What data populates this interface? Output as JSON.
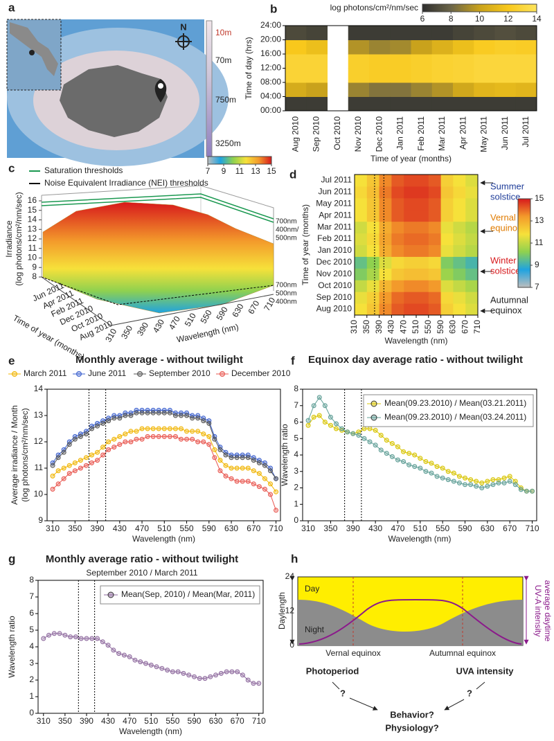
{
  "panel_labels": [
    "a",
    "b",
    "c",
    "d",
    "e",
    "f",
    "g",
    "h"
  ],
  "map": {
    "north": "N",
    "depth_labels": [
      {
        "text": "10m",
        "color": "#c0392b"
      },
      {
        "text": "70m",
        "color": "#222222"
      },
      {
        "text": "750m",
        "color": "#222222"
      },
      {
        "text": "3250m",
        "color": "#222222"
      }
    ]
  },
  "chart_data": [
    {
      "type": "heatmap",
      "ylabel": "Time of day (hrs)",
      "xlabel": "Time of year (months)",
      "categories": [
        "Aug 2010",
        "Sep 2010",
        "Oct 2010",
        "Nov 2010",
        "Dec 2010",
        "Jan 2011",
        "Feb 2011",
        "Mar 2011",
        "Apr 2011",
        "May 2011",
        "Jun 2011",
        "Jul 2011"
      ],
      "ylim": [
        0,
        24
      ],
      "yticks": [
        {
          "value": 0,
          "label": "00:00"
        },
        {
          "value": 4,
          "label": "04:00"
        },
        {
          "value": 8,
          "label": "08:00"
        },
        {
          "value": 12,
          "label": "12:00"
        },
        {
          "value": 16,
          "label": "16:00"
        },
        {
          "value": 20,
          "label": "20:00"
        },
        {
          "value": 24,
          "label": "24:00"
        }
      ],
      "values": [
        [
          6.5,
          10.5,
          12.8,
          12.8,
          12.0,
          7.0
        ],
        [
          6.5,
          10.0,
          12.8,
          12.8,
          11.5,
          6.8
        ],
        [
          null,
          null,
          null,
          null,
          null,
          null
        ],
        [
          6.5,
          9.0,
          12.5,
          12.5,
          9.5,
          6.5
        ],
        [
          6.5,
          8.5,
          12.3,
          12.3,
          9.0,
          6.5
        ],
        [
          6.5,
          8.5,
          12.3,
          12.3,
          9.2,
          6.5
        ],
        [
          6.5,
          9.0,
          12.5,
          12.5,
          10.0,
          6.5
        ],
        [
          6.5,
          9.5,
          12.7,
          12.7,
          10.8,
          6.5
        ],
        [
          6.5,
          10.3,
          12.8,
          12.8,
          11.5,
          6.8
        ],
        [
          6.5,
          11.0,
          13.0,
          13.0,
          12.2,
          7.0
        ],
        [
          6.5,
          11.2,
          13.0,
          13.0,
          12.4,
          7.2
        ],
        [
          6.5,
          11.0,
          13.0,
          13.0,
          12.3,
          7.0
        ]
      ],
      "colorbar": {
        "title": "log photons/cm²/nm/sec",
        "lim": [
          6,
          14
        ],
        "ticks": [
          6,
          8,
          10,
          12,
          14
        ],
        "colorscale": [
          "#2e2e2e",
          "#6b6548",
          "#c9a21c",
          "#f8c81c",
          "#fde45c"
        ]
      }
    },
    {
      "type": "surface",
      "legend": [
        {
          "name": "Saturation thresholds",
          "color": "#1a9850"
        },
        {
          "name": "Noise Equivalent Irradiance (NEI) thresholds",
          "color": "#000000"
        }
      ],
      "zlabel": [
        "Irradiance",
        "(log photons/cm²/nm/sec)"
      ],
      "zlim": [
        8,
        16
      ],
      "zticks": [
        8,
        9,
        10,
        11,
        12,
        13,
        14,
        15,
        16
      ],
      "time_labels": [
        "Jun 2011",
        "Apr 2011",
        "Feb 2011",
        "Dec 2010",
        "Oct 2010",
        "Aug 2010"
      ],
      "ylabel": "Time of year (months)",
      "xticks": [
        310,
        350,
        390,
        430,
        470,
        510,
        550,
        590,
        630,
        670,
        710
      ],
      "xlabel": "Wavelength (nm)",
      "annotations_top": [
        "700nm",
        "400nm/",
        "500nm"
      ],
      "annotations_bottom": [
        "700nm",
        "500nm",
        "400nm"
      ],
      "colorbar": {
        "lim": [
          7,
          15
        ],
        "ticks": [
          7,
          9,
          11,
          13,
          15
        ],
        "colorscale": [
          "#bdbdbd",
          "#1fa3e0",
          "#8fd14f",
          "#f6e13a",
          "#f39a2b",
          "#d7191c"
        ]
      }
    },
    {
      "type": "heatmap",
      "ylabel": "Time of year (months)",
      "xlabel": "Wavelength (nm)",
      "categories": [
        "Aug 2010",
        "Sep 2010",
        "Oct 2010",
        "Nov 2010",
        "Dec 2010",
        "Jan 2010",
        "Feb 2011",
        "Mar 2011",
        "Apr 2011",
        "May 2011",
        "Jun 2011",
        "Jul 2011"
      ],
      "xlim": [
        310,
        710
      ],
      "xticks": [
        310,
        350,
        390,
        430,
        470,
        510,
        550,
        590,
        630,
        670,
        710
      ],
      "values": [
        [
          11.8,
          12.4,
          13.6,
          14.2,
          14.4,
          14.4,
          14.2,
          12.2,
          11.8,
          11.4
        ],
        [
          11.6,
          12.2,
          13.4,
          14.0,
          14.2,
          14.2,
          14.0,
          12.0,
          11.6,
          11.2
        ],
        [
          11.0,
          11.6,
          12.8,
          13.4,
          13.6,
          13.6,
          13.4,
          11.4,
          11.0,
          10.6
        ],
        [
          10.0,
          10.6,
          11.8,
          12.4,
          12.6,
          12.6,
          12.4,
          10.4,
          10.0,
          9.6
        ],
        [
          9.6,
          10.2,
          11.4,
          12.0,
          12.2,
          12.2,
          12.0,
          10.0,
          9.6,
          9.2
        ],
        [
          11.2,
          11.8,
          13.0,
          13.6,
          13.8,
          13.8,
          13.6,
          11.6,
          11.2,
          10.8
        ],
        [
          11.4,
          12.0,
          13.2,
          13.8,
          14.0,
          14.0,
          13.8,
          11.8,
          11.4,
          11.0
        ],
        [
          11.2,
          11.8,
          13.0,
          13.6,
          13.8,
          13.8,
          13.6,
          11.6,
          11.2,
          10.8
        ],
        [
          11.8,
          12.4,
          13.6,
          14.2,
          14.4,
          14.4,
          14.2,
          12.2,
          11.8,
          11.4
        ],
        [
          11.8,
          12.4,
          13.6,
          14.2,
          14.4,
          14.4,
          14.2,
          12.2,
          11.8,
          11.4
        ],
        [
          12.0,
          12.6,
          13.8,
          14.4,
          14.6,
          14.6,
          14.4,
          12.4,
          12.0,
          11.6
        ],
        [
          11.8,
          12.4,
          13.6,
          14.2,
          14.4,
          14.4,
          14.2,
          12.2,
          11.8,
          11.4
        ]
      ],
      "reference_lines": [
        375,
        405
      ],
      "annotations": [
        {
          "lines": [
            "Summer",
            "solstice"
          ],
          "color": "#1f3d99"
        },
        {
          "lines": [
            "Vernal",
            "equinox"
          ],
          "color": "#e07b00"
        },
        {
          "lines": [
            "Winter",
            "solstice"
          ],
          "color": "#d7191c"
        },
        {
          "lines": [
            "Autumnal",
            "equinox"
          ],
          "color": "#222222"
        }
      ],
      "colorbar": {
        "lim": [
          7,
          15
        ],
        "ticks": [
          7,
          9,
          11,
          13,
          15
        ],
        "colorscale": [
          "#bdbdbd",
          "#1fa3e0",
          "#8fd14f",
          "#f6e13a",
          "#f39a2b",
          "#d7191c"
        ]
      }
    },
    {
      "type": "line",
      "title": "Monthly average - without twilight",
      "ylabel": [
        "Average irradiance / Month",
        "(log photons/cm²/nm/sec)"
      ],
      "xlabel": "Wavelength (nm)",
      "legend": "top",
      "xlim": [
        300,
        718
      ],
      "xticks": [
        310,
        350,
        390,
        430,
        470,
        510,
        550,
        590,
        630,
        670,
        710
      ],
      "ylim": [
        9,
        14
      ],
      "yticks": [
        9,
        10,
        11,
        12,
        13,
        14
      ],
      "reference_lines": [
        375,
        405
      ],
      "x": [
        310,
        320,
        330,
        340,
        350,
        360,
        370,
        380,
        390,
        400,
        410,
        420,
        430,
        440,
        450,
        460,
        470,
        480,
        490,
        500,
        510,
        520,
        530,
        540,
        550,
        560,
        570,
        580,
        590,
        600,
        610,
        620,
        630,
        640,
        650,
        660,
        670,
        680,
        690,
        700,
        710
      ],
      "series": [
        {
          "name": "March 2011",
          "color": "#f0b400",
          "values": [
            10.7,
            10.9,
            11.0,
            11.1,
            11.2,
            11.3,
            11.4,
            11.5,
            11.6,
            11.8,
            12.0,
            12.1,
            12.2,
            12.3,
            12.4,
            12.4,
            12.5,
            12.5,
            12.5,
            12.5,
            12.5,
            12.5,
            12.5,
            12.5,
            12.4,
            12.4,
            12.4,
            12.3,
            12.2,
            11.7,
            11.3,
            11.1,
            11.0,
            11.0,
            11.0,
            11.0,
            10.9,
            10.8,
            10.6,
            10.4,
            10.1
          ]
        },
        {
          "name": "June 2011",
          "color": "#3a5fcd",
          "values": [
            11.2,
            11.5,
            11.7,
            12.0,
            12.2,
            12.3,
            12.4,
            12.6,
            12.7,
            12.8,
            12.9,
            13.0,
            13.0,
            13.1,
            13.1,
            13.2,
            13.2,
            13.2,
            13.2,
            13.2,
            13.2,
            13.2,
            13.1,
            13.1,
            13.1,
            13.0,
            13.0,
            12.9,
            12.8,
            12.2,
            11.8,
            11.6,
            11.5,
            11.5,
            11.5,
            11.5,
            11.4,
            11.3,
            11.2,
            11.0,
            10.6
          ]
        },
        {
          "name": "September 2010",
          "color": "#555555",
          "values": [
            11.1,
            11.4,
            11.6,
            11.9,
            12.1,
            12.2,
            12.3,
            12.5,
            12.6,
            12.7,
            12.8,
            12.9,
            12.9,
            13.0,
            13.0,
            13.1,
            13.1,
            13.1,
            13.1,
            13.1,
            13.1,
            13.1,
            13.0,
            13.0,
            13.0,
            12.9,
            12.9,
            12.8,
            12.7,
            12.1,
            11.7,
            11.5,
            11.4,
            11.4,
            11.4,
            11.4,
            11.3,
            11.2,
            11.1,
            10.9,
            10.6
          ]
        },
        {
          "name": "December 2010",
          "color": "#e8554e",
          "values": [
            10.2,
            10.4,
            10.6,
            10.8,
            10.9,
            11.0,
            11.1,
            11.2,
            11.3,
            11.5,
            11.7,
            11.8,
            11.9,
            12.0,
            12.0,
            12.1,
            12.1,
            12.2,
            12.2,
            12.2,
            12.2,
            12.2,
            12.2,
            12.1,
            12.1,
            12.1,
            12.0,
            12.0,
            11.9,
            11.4,
            10.9,
            10.7,
            10.6,
            10.5,
            10.5,
            10.5,
            10.4,
            10.3,
            10.2,
            10.0,
            9.4
          ]
        }
      ]
    },
    {
      "type": "line",
      "title": "Equinox day average ratio - without twilight",
      "ylabel": [
        "Wavelength ratio"
      ],
      "xlabel": "Wavelength (nm)",
      "legend": "upper right",
      "xlim": [
        300,
        718
      ],
      "xticks": [
        310,
        350,
        390,
        430,
        470,
        510,
        550,
        590,
        630,
        670,
        710
      ],
      "ylim": [
        0,
        8
      ],
      "yticks": [
        0,
        1,
        2,
        3,
        4,
        5,
        6,
        7,
        8
      ],
      "reference_lines": [
        375,
        405
      ],
      "x": [
        310,
        320,
        330,
        340,
        350,
        360,
        370,
        380,
        390,
        400,
        410,
        420,
        430,
        440,
        450,
        460,
        470,
        480,
        490,
        500,
        510,
        520,
        530,
        540,
        550,
        560,
        570,
        580,
        590,
        600,
        610,
        620,
        630,
        640,
        650,
        660,
        670,
        680,
        690,
        700,
        710
      ],
      "series": [
        {
          "name": "Mean(09.23.2010) / Mean(03.21.2011)",
          "color": "#d8c400",
          "values": [
            5.8,
            6.3,
            6.4,
            6.0,
            5.8,
            5.6,
            5.5,
            5.4,
            5.3,
            5.4,
            5.6,
            5.6,
            5.5,
            5.2,
            4.9,
            4.7,
            4.5,
            4.2,
            4.1,
            4.0,
            3.8,
            3.6,
            3.5,
            3.3,
            3.2,
            3.0,
            2.9,
            2.7,
            2.6,
            2.5,
            2.4,
            2.3,
            2.4,
            2.5,
            2.5,
            2.6,
            2.7,
            2.4,
            2.0,
            1.8,
            1.8
          ]
        },
        {
          "name": "Mean(09.23.2010) / Mean(03.24.2011)",
          "color": "#5f9e96",
          "values": [
            6.1,
            7.0,
            7.5,
            7.0,
            6.3,
            5.9,
            5.6,
            5.4,
            5.3,
            5.2,
            5.0,
            4.8,
            4.6,
            4.3,
            4.1,
            3.9,
            3.7,
            3.6,
            3.4,
            3.3,
            3.2,
            3.0,
            2.9,
            2.7,
            2.6,
            2.5,
            2.4,
            2.3,
            2.2,
            2.2,
            2.1,
            2.0,
            2.1,
            2.2,
            2.3,
            2.3,
            2.4,
            2.2,
            1.9,
            1.8,
            1.8
          ]
        }
      ]
    },
    {
      "type": "line",
      "title": "Monthly average ratio - without twilight",
      "subtitle": "September 2010 / March 2011",
      "ylabel": [
        "Wavelength ratio"
      ],
      "xlabel": "Wavelength (nm)",
      "legend": "upper right",
      "xlim": [
        300,
        718
      ],
      "xticks": [
        310,
        350,
        390,
        430,
        470,
        510,
        550,
        590,
        630,
        670,
        710
      ],
      "ylim": [
        0,
        8
      ],
      "yticks": [
        0,
        1,
        2,
        3,
        4,
        5,
        6,
        7,
        8
      ],
      "reference_lines": [
        375,
        405
      ],
      "x": [
        310,
        320,
        330,
        340,
        350,
        360,
        370,
        380,
        390,
        400,
        410,
        420,
        430,
        440,
        450,
        460,
        470,
        480,
        490,
        500,
        510,
        520,
        530,
        540,
        550,
        560,
        570,
        580,
        590,
        600,
        610,
        620,
        630,
        640,
        650,
        660,
        670,
        680,
        690,
        700,
        710
      ],
      "series": [
        {
          "name": "Mean(Sep, 2010) / Mean(Mar, 2011)",
          "color": "#8e6a9e",
          "values": [
            4.5,
            4.7,
            4.8,
            4.8,
            4.7,
            4.6,
            4.6,
            4.5,
            4.5,
            4.5,
            4.5,
            4.3,
            4.1,
            3.8,
            3.6,
            3.5,
            3.4,
            3.2,
            3.1,
            3.0,
            2.9,
            2.8,
            2.7,
            2.6,
            2.5,
            2.5,
            2.4,
            2.3,
            2.2,
            2.1,
            2.1,
            2.2,
            2.3,
            2.4,
            2.5,
            2.5,
            2.5,
            2.3,
            2.0,
            1.8,
            1.8
          ]
        }
      ]
    }
  ],
  "diagram": {
    "ylabel": "Daylength",
    "yticks": [
      0,
      12,
      24
    ],
    "day": "Day",
    "night": "Night",
    "uv_label": [
      "average daytime",
      "UV-A intensity"
    ],
    "vernal": "Vernal equinox",
    "autumnal": "Autumnal equinox",
    "photoperiod": "Photoperiod",
    "uva": "UVA intensity",
    "question_left": "?",
    "question_right": "?",
    "outcome": [
      "Behavior?",
      "Physiology?"
    ]
  }
}
